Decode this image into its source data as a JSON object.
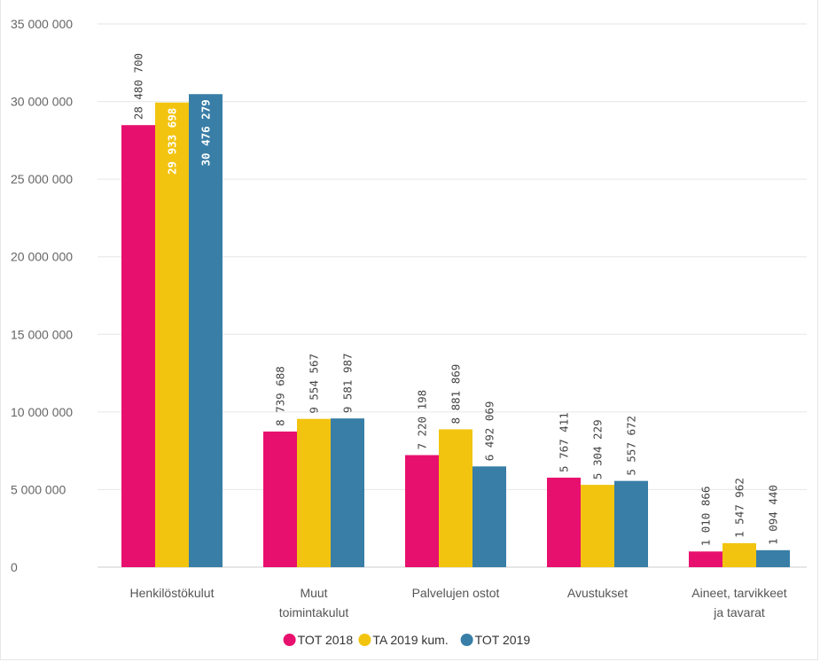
{
  "chart_data": {
    "type": "bar",
    "title": "",
    "xlabel": "",
    "ylabel": "",
    "ylim": [
      0,
      35000000
    ],
    "yticks": [
      0,
      5000000,
      10000000,
      15000000,
      20000000,
      25000000,
      30000000,
      35000000
    ],
    "ytick_labels": [
      "0",
      "5 000 000",
      "10 000 000",
      "15 000 000",
      "20 000 000",
      "25 000 000",
      "30 000 000",
      "35 000 000"
    ],
    "grid": true,
    "legend_position": "bottom",
    "categories": [
      [
        "Henkilöstökulut"
      ],
      [
        "Muut",
        "toimintakulut"
      ],
      [
        "Palvelujen ostot"
      ],
      [
        "Avustukset"
      ],
      [
        "Aineet, tarvikkeet",
        "ja tavarat"
      ]
    ],
    "series": [
      {
        "name": "TOT 2018",
        "color": "#e8106e",
        "values": [
          28480700,
          8739688,
          7220198,
          5767411,
          1010866
        ],
        "labels": [
          "28 480 700",
          "8 739 688",
          "7 220 198",
          "5 767 411",
          "1 010 866"
        ]
      },
      {
        "name": "TA 2019 kum.",
        "color": "#f2c40f",
        "values": [
          29933698,
          9554567,
          8881869,
          5304229,
          1547962
        ],
        "labels": [
          "29 933 698",
          "9 554 567",
          "8 881 869",
          "5 304 229",
          "1 547 962"
        ]
      },
      {
        "name": "TOT 2019",
        "color": "#387ea7",
        "values": [
          30476279,
          9581987,
          6492069,
          5557672,
          1094440
        ],
        "labels": [
          "30 476 279",
          "9 581 987",
          "6 492 069",
          "5 557 672",
          "1 094 440"
        ]
      }
    ]
  }
}
